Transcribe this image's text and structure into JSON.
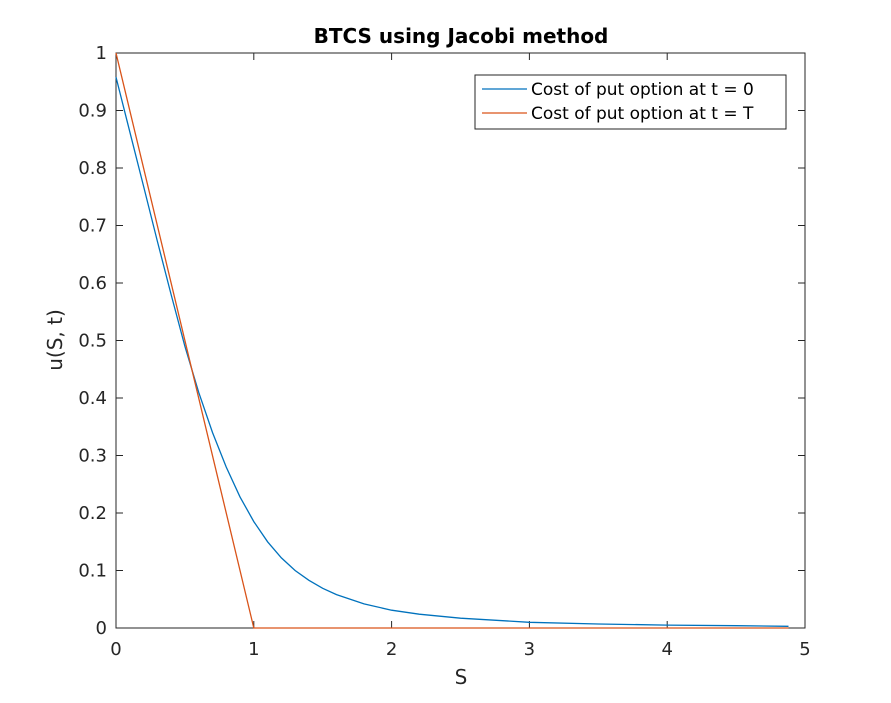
{
  "chart_data": {
    "type": "line",
    "title": "BTCS using Jacobi method",
    "xlabel": "S",
    "ylabel": "u(S, t)",
    "xlim": [
      0,
      5
    ],
    "ylim": [
      0,
      1
    ],
    "xticks": [
      0,
      1,
      2,
      3,
      4,
      5
    ],
    "xtick_labels": [
      "0",
      "1",
      "2",
      "3",
      "4",
      "5"
    ],
    "yticks": [
      0,
      0.1,
      0.2,
      0.3,
      0.4,
      0.5,
      0.6,
      0.7,
      0.8,
      0.9,
      1
    ],
    "ytick_labels": [
      "0",
      "0.1",
      "0.2",
      "0.3",
      "0.4",
      "0.5",
      "0.6",
      "0.7",
      "0.8",
      "0.9",
      "1"
    ],
    "grid": false,
    "legend_position": "top-right",
    "series": [
      {
        "name": "Cost of put option at t = 0",
        "color": "#0072BD",
        "x": [
          0,
          0.1,
          0.2,
          0.3,
          0.4,
          0.5,
          0.6,
          0.7,
          0.8,
          0.9,
          1.0,
          1.1,
          1.2,
          1.3,
          1.4,
          1.5,
          1.6,
          1.8,
          2.0,
          2.2,
          2.5,
          3.0,
          3.5,
          4.0,
          4.5,
          4.88
        ],
        "y": [
          0.958,
          0.863,
          0.768,
          0.673,
          0.58,
          0.49,
          0.41,
          0.34,
          0.28,
          0.228,
          0.185,
          0.15,
          0.122,
          0.1,
          0.083,
          0.069,
          0.058,
          0.042,
          0.031,
          0.024,
          0.017,
          0.01,
          0.007,
          0.005,
          0.004,
          0.003
        ]
      },
      {
        "name": "Cost of put option at t = T",
        "color": "#D95319",
        "x": [
          0,
          1,
          4.88
        ],
        "y": [
          1,
          0,
          0
        ]
      }
    ]
  }
}
